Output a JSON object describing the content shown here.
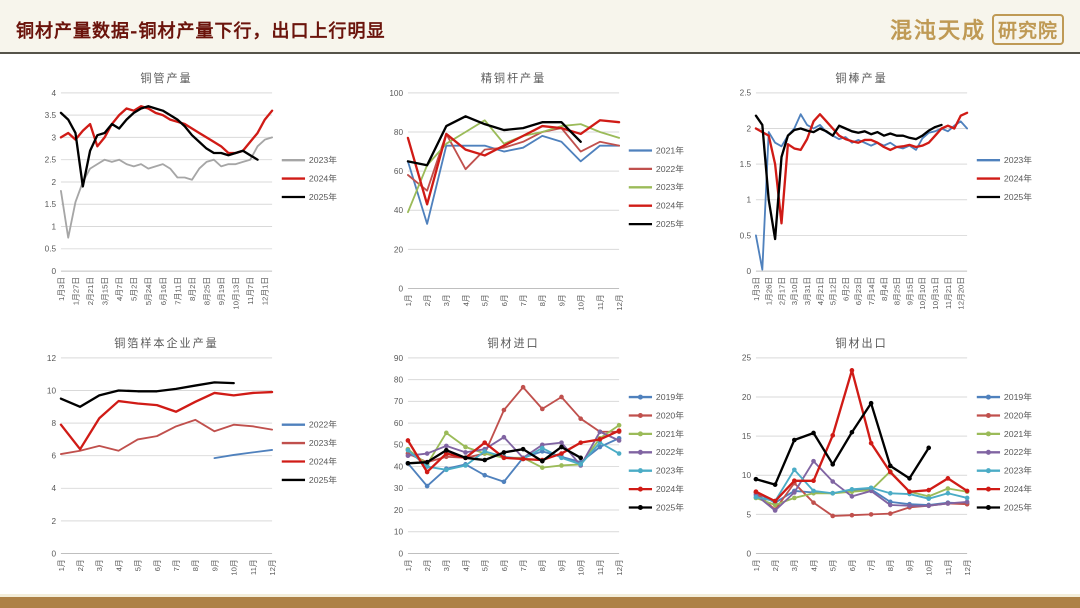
{
  "header": {
    "title": "铜材产量数据-铜材产量下行，出口上行明显",
    "title_color": "#6b140c",
    "logo_left": "混沌天成",
    "logo_right": "研究院",
    "logo_color": "#bf9a55"
  },
  "footer": {
    "bar_color": "#ad8146"
  },
  "palette": {
    "grid": "#d9d9d9",
    "axis_text": "#595959",
    "title_text": "#595959"
  },
  "chart_data": [
    {
      "type": "line",
      "title": "铜管产量",
      "ylim": [
        0,
        4
      ],
      "yticks": [
        0,
        0.5,
        1,
        1.5,
        2,
        2.5,
        3,
        3.5,
        4
      ],
      "label_step": 2,
      "markers": false,
      "legend_position": "right",
      "xlabels": [
        "1月3日",
        "1月27日",
        "2月21日",
        "3月15日",
        "4月7日",
        "5月2日",
        "5月24日",
        "6月16日",
        "7月11日",
        "8月2日",
        "8月25日",
        "9月19日",
        "10月13日",
        "11月7日",
        "12月1日"
      ],
      "series": [
        {
          "name": "2023年",
          "color": "#a6a6a6",
          "values": [
            1.8,
            0.75,
            1.55,
            2.0,
            2.3,
            2.4,
            2.5,
            2.45,
            2.5,
            2.4,
            2.35,
            2.4,
            2.3,
            2.35,
            2.4,
            2.3,
            2.1,
            2.1,
            2.05,
            2.3,
            2.45,
            2.5,
            2.35,
            2.4,
            2.4,
            2.45,
            2.5,
            2.8,
            2.95,
            3.0
          ]
        },
        {
          "name": "2024年",
          "color": "#d01b16",
          "values": [
            3.0,
            3.1,
            2.95,
            3.15,
            3.3,
            2.8,
            3.0,
            3.3,
            3.5,
            3.65,
            3.6,
            3.7,
            3.65,
            3.55,
            3.5,
            3.4,
            3.35,
            3.3,
            3.2,
            3.1,
            3.0,
            2.9,
            2.8,
            2.65,
            2.65,
            2.7,
            2.9,
            3.1,
            3.4,
            3.6
          ]
        },
        {
          "name": "2025年",
          "color": "#000000",
          "values": [
            3.55,
            3.4,
            3.1,
            1.9,
            2.7,
            3.05,
            3.1,
            3.3,
            3.2,
            3.4,
            3.55,
            3.65,
            3.7,
            3.65,
            3.6,
            3.5,
            3.4,
            3.25,
            3.05,
            2.9,
            2.75,
            2.65,
            2.65,
            2.6,
            2.65,
            2.7,
            2.6,
            2.5,
            null,
            null
          ]
        }
      ]
    },
    {
      "type": "line",
      "title": "精铜杆产量",
      "ylim": [
        0,
        100
      ],
      "yticks": [
        0,
        20,
        40,
        60,
        80,
        100
      ],
      "label_step": 1,
      "markers": false,
      "legend_position": "right",
      "xlabels": [
        "1月",
        "2月",
        "3月",
        "4月",
        "5月",
        "6月",
        "7月",
        "8月",
        "9月",
        "10月",
        "11月",
        "12月"
      ],
      "series": [
        {
          "name": "2021年",
          "color": "#4f81bd",
          "values": [
            65,
            33,
            73,
            73,
            73,
            70,
            72,
            78,
            75,
            65,
            73,
            73
          ]
        },
        {
          "name": "2022年",
          "color": "#c0504d",
          "values": [
            58,
            50,
            79,
            61,
            71,
            72,
            75,
            80,
            82,
            70,
            75,
            73
          ]
        },
        {
          "name": "2023年",
          "color": "#9bbb59",
          "values": [
            39,
            63,
            74,
            80,
            86,
            74,
            78,
            80,
            83,
            84,
            80,
            77
          ]
        },
        {
          "name": "2024年",
          "color": "#d01b16",
          "values": [
            77,
            43,
            79,
            71,
            68,
            73,
            78,
            83,
            82,
            79,
            86,
            85
          ]
        },
        {
          "name": "2025年",
          "color": "#000000",
          "values": [
            65,
            63,
            83,
            88,
            84,
            81,
            82,
            85,
            85,
            75,
            null,
            null
          ]
        }
      ]
    },
    {
      "type": "line",
      "title": "铜棒产量",
      "ylim": [
        0,
        2.5
      ],
      "yticks": [
        0,
        0.5,
        1,
        1.5,
        2,
        2.5
      ],
      "label_step": 2,
      "markers": false,
      "legend_position": "right",
      "xlabels": [
        "1月3日",
        "1月26日",
        "2月17日",
        "3月10日",
        "3月31日",
        "4月21日",
        "5月12日",
        "6月2日",
        "6月23日",
        "7月14日",
        "8月4日",
        "8月25日",
        "9月15日",
        "10月10日",
        "10月31日",
        "11月21日",
        "12月20日"
      ],
      "series": [
        {
          "name": "2023年",
          "color": "#4f81bd",
          "values": [
            0.5,
            0.02,
            1.95,
            1.8,
            1.75,
            1.9,
            2.0,
            2.2,
            2.05,
            2.0,
            2.05,
            1.95,
            1.9,
            1.85,
            1.88,
            1.8,
            1.84,
            1.8,
            1.76,
            1.8,
            1.76,
            1.8,
            1.74,
            1.72,
            1.76,
            1.7,
            1.86,
            1.94,
            1.96,
            2.0,
            1.96,
            2.04,
            2.1,
            2.0
          ]
        },
        {
          "name": "2024年",
          "color": "#d01b16",
          "values": [
            2.0,
            1.95,
            1.9,
            1.5,
            0.67,
            1.78,
            1.72,
            1.7,
            1.85,
            2.1,
            2.2,
            2.1,
            2.0,
            1.9,
            1.85,
            1.82,
            1.8,
            1.84,
            1.84,
            1.8,
            1.74,
            1.7,
            1.74,
            1.75,
            1.77,
            1.74,
            1.76,
            1.8,
            1.9,
            2.0,
            2.04,
            2.0,
            2.18,
            2.22
          ]
        },
        {
          "name": "2025年",
          "color": "#000000",
          "values": [
            2.18,
            2.05,
            1.0,
            0.45,
            1.6,
            1.9,
            1.98,
            2.0,
            1.97,
            1.95,
            2.0,
            1.96,
            1.9,
            2.04,
            2.0,
            1.96,
            1.94,
            1.96,
            1.92,
            1.95,
            1.9,
            1.93,
            1.9,
            1.9,
            1.87,
            1.85,
            1.9,
            1.97,
            2.02,
            2.05,
            null,
            null,
            null,
            null
          ]
        }
      ]
    },
    {
      "type": "line",
      "title": "铜箔样本企业产量",
      "ylim": [
        0,
        12
      ],
      "yticks": [
        0,
        2,
        4,
        6,
        8,
        10,
        12
      ],
      "label_step": 1,
      "markers": false,
      "legend_position": "right",
      "xlabels": [
        "1月",
        "2月",
        "3月",
        "4月",
        "5月",
        "6月",
        "7月",
        "8月",
        "9月",
        "10月",
        "11月",
        "12月"
      ],
      "series": [
        {
          "name": "2022年",
          "color": "#4f81bd",
          "values": [
            null,
            null,
            null,
            null,
            null,
            null,
            null,
            null,
            5.85,
            6.05,
            6.2,
            6.35
          ]
        },
        {
          "name": "2023年",
          "color": "#c0504d",
          "values": [
            6.1,
            6.3,
            6.6,
            6.3,
            7.0,
            7.2,
            7.8,
            8.2,
            7.5,
            7.9,
            7.8,
            7.6
          ]
        },
        {
          "name": "2024年",
          "color": "#d01b16",
          "values": [
            7.9,
            6.4,
            8.3,
            9.35,
            9.2,
            9.1,
            8.7,
            9.3,
            9.85,
            9.7,
            9.85,
            9.9
          ]
        },
        {
          "name": "2025年",
          "color": "#000000",
          "values": [
            9.5,
            9.0,
            9.7,
            10.0,
            9.95,
            9.95,
            10.1,
            10.3,
            10.5,
            10.45,
            null,
            null
          ]
        }
      ]
    },
    {
      "type": "line",
      "title": "铜材进口",
      "ylim": [
        0,
        90
      ],
      "yticks": [
        0,
        10,
        20,
        30,
        40,
        50,
        60,
        70,
        80,
        90
      ],
      "label_step": 1,
      "markers": true,
      "legend_position": "right",
      "xlabels": [
        "1月",
        "2月",
        "3月",
        "4月",
        "5月",
        "6月",
        "7月",
        "8月",
        "9月",
        "10月",
        "11月",
        "12月"
      ],
      "series": [
        {
          "name": "2019年",
          "color": "#4f81bd",
          "values": [
            41.5,
            31,
            39,
            41,
            36,
            33,
            44,
            47,
            44.5,
            42,
            49,
            53
          ]
        },
        {
          "name": "2020年",
          "color": "#c0504d",
          "values": [
            46,
            42,
            44.5,
            44,
            46,
            66,
            76.5,
            66.5,
            72,
            62,
            56,
            56
          ]
        },
        {
          "name": "2021年",
          "color": "#9bbb59",
          "values": [
            48,
            41,
            55.5,
            49,
            46,
            44,
            44,
            39.5,
            40.5,
            41,
            53,
            59
          ]
        },
        {
          "name": "2022年",
          "color": "#8064a2",
          "values": [
            45,
            46,
            49.5,
            46.5,
            48,
            53.5,
            44,
            50,
            51,
            40.5,
            56,
            52
          ]
        },
        {
          "name": "2023年",
          "color": "#4bacc6",
          "values": [
            47.5,
            40,
            38.5,
            40.5,
            47,
            44.5,
            43.5,
            48.5,
            44,
            41,
            51,
            46
          ]
        },
        {
          "name": "2024年",
          "color": "#d01b16",
          "values": [
            52,
            37.5,
            46,
            44,
            51,
            44,
            43.5,
            43,
            46,
            51,
            52.5,
            56.5
          ]
        },
        {
          "name": "2025年",
          "color": "#000000",
          "values": [
            41.5,
            42,
            47.5,
            44,
            43,
            46.5,
            48,
            42.5,
            49,
            44,
            null,
            null
          ]
        }
      ]
    },
    {
      "type": "line",
      "title": "铜材出口",
      "ylim": [
        0,
        25
      ],
      "yticks": [
        0,
        5,
        10,
        15,
        20,
        25
      ],
      "label_step": 1,
      "markers": true,
      "legend_position": "right",
      "xlabels": [
        "1月",
        "2月",
        "3月",
        "4月",
        "5月",
        "6月",
        "7月",
        "8月",
        "9月",
        "10月",
        "11月",
        "12月"
      ],
      "series": [
        {
          "name": "2019年",
          "color": "#4f81bd",
          "values": [
            7.8,
            6.5,
            8.0,
            7.8,
            7.7,
            8.1,
            8.2,
            6.6,
            6.3,
            6.2,
            6.5,
            6.4
          ]
        },
        {
          "name": "2020年",
          "color": "#c0504d",
          "values": [
            7.8,
            5.6,
            9.0,
            6.5,
            4.8,
            4.9,
            5.0,
            5.1,
            5.9,
            6.1,
            6.4,
            6.3
          ]
        },
        {
          "name": "2021年",
          "color": "#9bbb59",
          "values": [
            7.1,
            6.2,
            7.1,
            7.7,
            7.7,
            7.9,
            8.1,
            10.5,
            7.9,
            7.3,
            8.3,
            7.9
          ]
        },
        {
          "name": "2022年",
          "color": "#8064a2",
          "values": [
            7.5,
            5.5,
            7.8,
            11.8,
            9.2,
            7.3,
            8.0,
            6.2,
            6.1,
            6.1,
            6.4,
            6.6
          ]
        },
        {
          "name": "2023年",
          "color": "#4bacc6",
          "values": [
            7.2,
            6.7,
            10.7,
            8.0,
            7.7,
            8.2,
            8.4,
            7.7,
            7.6,
            7.0,
            7.7,
            7.1
          ]
        },
        {
          "name": "2024年",
          "color": "#d01b16",
          "values": [
            7.9,
            6.7,
            9.3,
            9.3,
            15.1,
            23.4,
            14.1,
            10.4,
            7.9,
            8.1,
            9.6,
            8.0
          ]
        },
        {
          "name": "2025年",
          "color": "#000000",
          "values": [
            9.5,
            8.8,
            14.5,
            15.4,
            11.4,
            15.5,
            19.2,
            11.2,
            9.6,
            13.5,
            null,
            null
          ]
        }
      ]
    }
  ]
}
